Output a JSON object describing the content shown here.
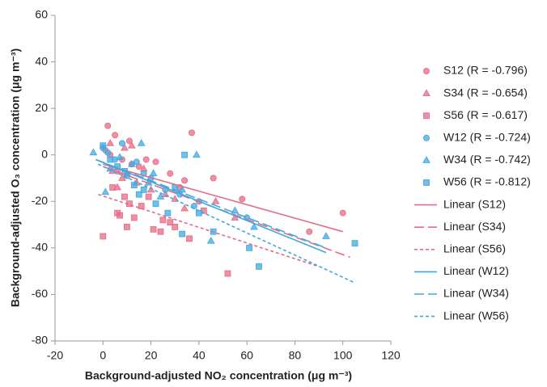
{
  "chart_data": {
    "type": "scatter",
    "x_label": "Background-adjusted NO₂ concentration (μg m⁻³)",
    "y_label": "Background-adjusted O₃ concentration (μg m⁻³)",
    "xlim": [
      -20,
      120
    ],
    "xticks": [
      -20,
      0,
      20,
      40,
      60,
      80,
      100,
      120
    ],
    "ylim": [
      -80,
      60
    ],
    "yticks": [
      -80,
      -60,
      -40,
      -20,
      0,
      20,
      40,
      60
    ],
    "legend": "right",
    "series": [
      {
        "name": "S12 (R = -0.796)",
        "color": "#e56b86",
        "marker": "circle",
        "x": [
          2,
          5,
          11,
          37,
          1,
          3,
          8,
          12,
          18,
          22,
          28,
          34,
          46,
          58,
          100,
          86,
          32,
          15,
          6,
          40
        ],
        "values": [
          12.5,
          8.5,
          6,
          9.5,
          2,
          0,
          -2,
          -4,
          -2,
          -3,
          -8,
          -11,
          -10,
          -19,
          -25,
          -33,
          -14,
          -5,
          -7,
          -20
        ]
      },
      {
        "name": "S34 (R = -0.654)",
        "color": "#e56b86",
        "marker": "triangle",
        "x": [
          3,
          9,
          12,
          8,
          6,
          14,
          20,
          26,
          30,
          47,
          55,
          4,
          10,
          17,
          34
        ],
        "values": [
          5,
          3,
          4,
          -10,
          -14,
          -12,
          -15,
          -17,
          -19,
          -20,
          -27,
          -7,
          -8,
          -6,
          -23
        ]
      },
      {
        "name": "S56 (R = -0.617)",
        "color": "#e56b86",
        "marker": "square",
        "x": [
          0,
          52,
          36,
          28,
          21,
          24,
          10,
          13,
          9,
          6,
          4,
          16,
          19,
          25,
          30,
          42,
          7,
          11
        ],
        "values": [
          -35,
          -51,
          -36,
          -29,
          -32,
          -33,
          -31,
          -27,
          -18,
          -25,
          -14,
          -22,
          -18,
          -28,
          -31,
          -24,
          -26,
          -21
        ]
      },
      {
        "name": "W12 (R = -0.724)",
        "color": "#3fa9e0",
        "marker": "circle",
        "x": [
          0,
          2,
          8,
          14,
          20,
          26,
          32,
          5,
          10,
          17,
          38,
          60
        ],
        "values": [
          3,
          1,
          5,
          -3,
          -10,
          -15,
          -17,
          -2,
          -9,
          -8,
          -22,
          -27
        ]
      },
      {
        "name": "W34 (R = -0.742)",
        "color": "#3fa9e0",
        "marker": "triangle",
        "x": [
          -4,
          1,
          3,
          7,
          12,
          16,
          21,
          33,
          39,
          45,
          55,
          63,
          93,
          19,
          24
        ],
        "values": [
          1,
          -16,
          -6,
          -1,
          -4,
          5,
          -8,
          -15,
          0,
          -37,
          -24,
          -31,
          -35,
          -12,
          -18
        ]
      },
      {
        "name": "W56 (R = -0.812)",
        "color": "#3fa9e0",
        "marker": "square",
        "x": [
          0,
          3,
          6,
          9,
          13,
          17,
          22,
          27,
          34,
          33,
          46,
          61,
          65,
          105,
          40,
          15,
          30
        ],
        "values": [
          4,
          -2,
          -5,
          -7,
          -13,
          -15,
          -21,
          -25,
          0,
          -34,
          -33,
          -40,
          -48,
          -38,
          -25,
          -17,
          -14
        ]
      },
      {
        "name": "Linear (S12)",
        "color": "#e56b86",
        "marker": "line",
        "dash": "solid",
        "x": [
          0,
          100
        ],
        "values": [
          -4,
          -33
        ]
      },
      {
        "name": "Linear (S34)",
        "color": "#e56b86",
        "marker": "line",
        "dash": "long",
        "x": [
          0,
          103
        ],
        "values": [
          -5,
          -44
        ]
      },
      {
        "name": "Linear (S56)",
        "color": "#e56b86",
        "marker": "line",
        "dash": "short",
        "x": [
          -2,
          90
        ],
        "values": [
          -17,
          -48
        ]
      },
      {
        "name": "Linear (W12)",
        "color": "#3fa9e0",
        "marker": "line",
        "dash": "solid",
        "x": [
          -3,
          93
        ],
        "values": [
          -2,
          -42
        ]
      },
      {
        "name": "Linear (W34)",
        "color": "#3fa9e0",
        "marker": "line",
        "dash": "long",
        "x": [
          -3,
          93
        ],
        "values": [
          -2,
          -40
        ]
      },
      {
        "name": "Linear (W56)",
        "color": "#3fa9e0",
        "marker": "line",
        "dash": "short",
        "x": [
          -2,
          105
        ],
        "values": [
          -4,
          -55
        ]
      }
    ]
  }
}
